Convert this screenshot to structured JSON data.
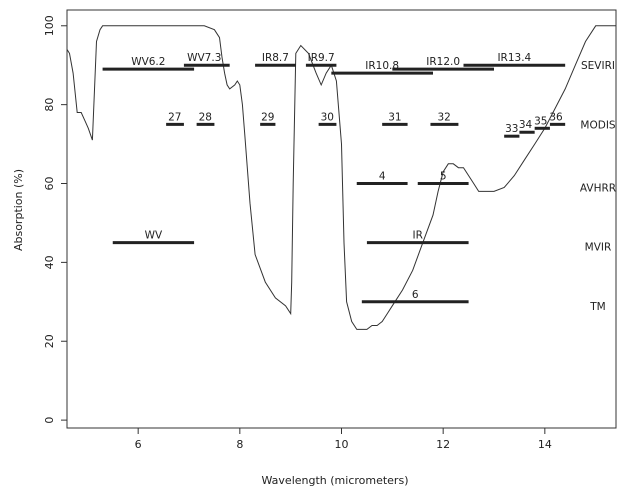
{
  "chart_data": {
    "type": "line",
    "title": "",
    "xlabel": "Wavelength (micrometers)",
    "ylabel": "Absorption (%)",
    "xlim": [
      4.6,
      15.4
    ],
    "ylim": [
      0,
      100
    ],
    "x_ticks": [
      6,
      8,
      10,
      12,
      14
    ],
    "y_ticks": [
      0,
      20,
      40,
      60,
      80,
      100
    ],
    "x_tick_labels": [
      "6",
      "8",
      "10",
      "12",
      "14"
    ],
    "y_tick_labels": [
      "0",
      "20",
      "40",
      "60",
      "80",
      "100"
    ],
    "grid": false,
    "legend": "none",
    "series": [
      {
        "x": [
          4.6,
          4.65,
          4.72,
          4.8,
          4.88,
          4.95,
          5.02,
          5.1,
          5.18,
          5.25,
          5.3,
          5.4,
          5.6,
          6.0,
          6.5,
          7.0,
          7.3,
          7.5,
          7.6,
          7.65,
          7.7,
          7.75,
          7.8,
          7.9,
          7.95,
          8.0,
          8.05,
          8.1,
          8.2,
          8.3,
          8.5,
          8.7,
          8.9,
          9.0,
          9.02,
          9.05,
          9.1,
          9.2,
          9.35,
          9.5,
          9.6,
          9.7,
          9.8,
          9.9,
          10.0,
          10.05,
          10.1,
          10.2,
          10.3,
          10.4,
          10.5,
          10.6,
          10.7,
          10.8,
          10.9,
          11.0,
          11.2,
          11.4,
          11.6,
          11.8,
          11.9,
          12.0,
          12.1,
          12.2,
          12.3,
          12.4,
          12.5,
          12.6,
          12.7,
          12.8,
          13.0,
          13.2,
          13.4,
          13.6,
          13.8,
          14.0,
          14.2,
          14.4,
          14.6,
          14.8,
          15.0,
          15.2,
          15.4
        ],
        "y": [
          94,
          93,
          88,
          78,
          78,
          76,
          74,
          71,
          96,
          99,
          100,
          100,
          100,
          100,
          100,
          100,
          100,
          99,
          97,
          92,
          88,
          85,
          84,
          85,
          86,
          85,
          80,
          72,
          55,
          42,
          35,
          31,
          29,
          27,
          35,
          60,
          93,
          95,
          93,
          88,
          85,
          88,
          90,
          86,
          70,
          45,
          30,
          25,
          23,
          23,
          23,
          24,
          24,
          25,
          27,
          29,
          33,
          38,
          45,
          52,
          58,
          63,
          65,
          65,
          64,
          64,
          62,
          60,
          58,
          58,
          58,
          59,
          62,
          66,
          70,
          74,
          79,
          84,
          90,
          96,
          100,
          100,
          100
        ]
      }
    ],
    "sensors": [
      {
        "name": "SEVIRI",
        "label_y": 90
      },
      {
        "name": "MODIS",
        "label_y": 75
      },
      {
        "name": "AVHRR",
        "label_y": 59
      },
      {
        "name": "MVIR",
        "label_y": 44
      },
      {
        "name": "TM",
        "label_y": 29
      }
    ],
    "bands": [
      {
        "label": "WV6.2",
        "x0": 5.3,
        "x1": 7.1,
        "y": 89,
        "label_x": 6.2
      },
      {
        "label": "WV7.3",
        "x0": 6.9,
        "x1": 7.8,
        "y": 90,
        "label_x": 7.3
      },
      {
        "label": "IR8.7",
        "x0": 8.3,
        "x1": 9.1,
        "y": 90,
        "label_x": 8.7
      },
      {
        "label": "IR9.7",
        "x0": 9.3,
        "x1": 9.9,
        "y": 90,
        "label_x": 9.6
      },
      {
        "label": "IR10.8",
        "x0": 9.8,
        "x1": 11.8,
        "y": 88,
        "label_x": 10.8
      },
      {
        "label": "IR12.0",
        "x0": 11.0,
        "x1": 13.0,
        "y": 89,
        "label_x": 12.0
      },
      {
        "label": "IR13.4",
        "x0": 12.4,
        "x1": 14.4,
        "y": 90,
        "label_x": 13.4
      },
      {
        "label": "27",
        "x0": 6.55,
        "x1": 6.9,
        "y": 75,
        "label_x": 6.72
      },
      {
        "label": "28",
        "x0": 7.15,
        "x1": 7.5,
        "y": 75,
        "label_x": 7.32
      },
      {
        "label": "29",
        "x0": 8.4,
        "x1": 8.7,
        "y": 75,
        "label_x": 8.55
      },
      {
        "label": "30",
        "x0": 9.55,
        "x1": 9.9,
        "y": 75,
        "label_x": 9.72
      },
      {
        "label": "31",
        "x0": 10.8,
        "x1": 11.3,
        "y": 75,
        "label_x": 11.05
      },
      {
        "label": "32",
        "x0": 11.75,
        "x1": 12.3,
        "y": 75,
        "label_x": 12.02
      },
      {
        "label": "33",
        "x0": 13.2,
        "x1": 13.5,
        "y": 72,
        "label_x": 13.35
      },
      {
        "label": "34",
        "x0": 13.5,
        "x1": 13.8,
        "y": 73,
        "label_x": 13.62
      },
      {
        "label": "35",
        "x0": 13.8,
        "x1": 14.1,
        "y": 74,
        "label_x": 13.92
      },
      {
        "label": "36",
        "x0": 14.1,
        "x1": 14.4,
        "y": 75,
        "label_x": 14.22
      },
      {
        "label": "4",
        "x0": 10.3,
        "x1": 11.3,
        "y": 60,
        "label_x": 10.8
      },
      {
        "label": "5",
        "x0": 11.5,
        "x1": 12.5,
        "y": 60,
        "label_x": 12.0
      },
      {
        "label": "WV",
        "x0": 5.5,
        "x1": 7.1,
        "y": 45,
        "label_x": 6.3
      },
      {
        "label": "IR",
        "x0": 10.5,
        "x1": 12.5,
        "y": 45,
        "label_x": 11.5
      },
      {
        "label": "6",
        "x0": 10.4,
        "x1": 12.5,
        "y": 30,
        "label_x": 11.45
      }
    ]
  }
}
